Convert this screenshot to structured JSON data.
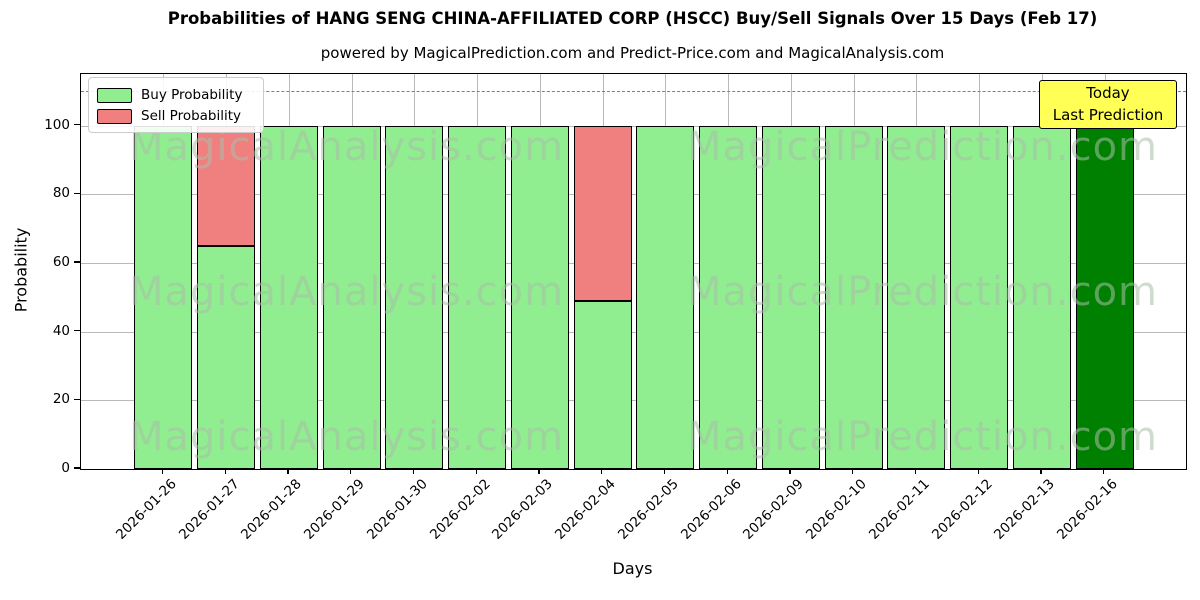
{
  "chart": {
    "title": "Probabilities of HANG SENG CHINA-AFFILIATED CORP (HSCC) Buy/Sell Signals Over 15 Days (Feb 17)",
    "subtitle": "powered by MagicalPrediction.com and Predict-Price.com and MagicalAnalysis.com",
    "xlabel": "Days",
    "ylabel": "Probability"
  },
  "legend": {
    "items": [
      {
        "label": "Buy Probability",
        "color": "#90EE90"
      },
      {
        "label": "Sell Probability",
        "color": "#F08080"
      }
    ]
  },
  "annotation": {
    "line1": "Today",
    "line2": "Last Prediction",
    "bg_color": "#FFFF55",
    "border_color": "#000000"
  },
  "watermarks": {
    "left_text": "MagicalAnalysis.com",
    "right_text": "MagicalPrediction.com"
  },
  "chart_data": {
    "type": "bar",
    "stacked": true,
    "title": "Probabilities of HANG SENG CHINA-AFFILIATED CORP (HSCC) Buy/Sell Signals Over 15 Days (Feb 17)",
    "xlabel": "Days",
    "ylabel": "Probability",
    "categories": [
      "2026-01-26",
      "2026-01-27",
      "2026-01-28",
      "2026-01-29",
      "2026-01-30",
      "2026-02-02",
      "2026-02-03",
      "2026-02-04",
      "2026-02-05",
      "2026-02-06",
      "2026-02-09",
      "2026-02-10",
      "2026-02-11",
      "2026-02-12",
      "2026-02-13",
      "2026-02-16"
    ],
    "series": [
      {
        "name": "Buy Probability",
        "color": "#90EE90",
        "values": [
          100,
          65,
          100,
          100,
          100,
          100,
          100,
          49,
          100,
          100,
          100,
          100,
          100,
          100,
          100,
          100
        ]
      },
      {
        "name": "Sell Probability",
        "color": "#F08080",
        "values": [
          0,
          35,
          0,
          0,
          0,
          0,
          0,
          51,
          0,
          0,
          0,
          0,
          0,
          0,
          0,
          0
        ]
      }
    ],
    "today_index": 15,
    "today_bar_color": "#008000",
    "bar_edge_color": "#000000",
    "yticks": [
      0,
      20,
      40,
      60,
      80,
      100
    ],
    "ylim": [
      0,
      115
    ],
    "dashed_line_y": 110,
    "grid": true,
    "legend_position": "upper left"
  }
}
